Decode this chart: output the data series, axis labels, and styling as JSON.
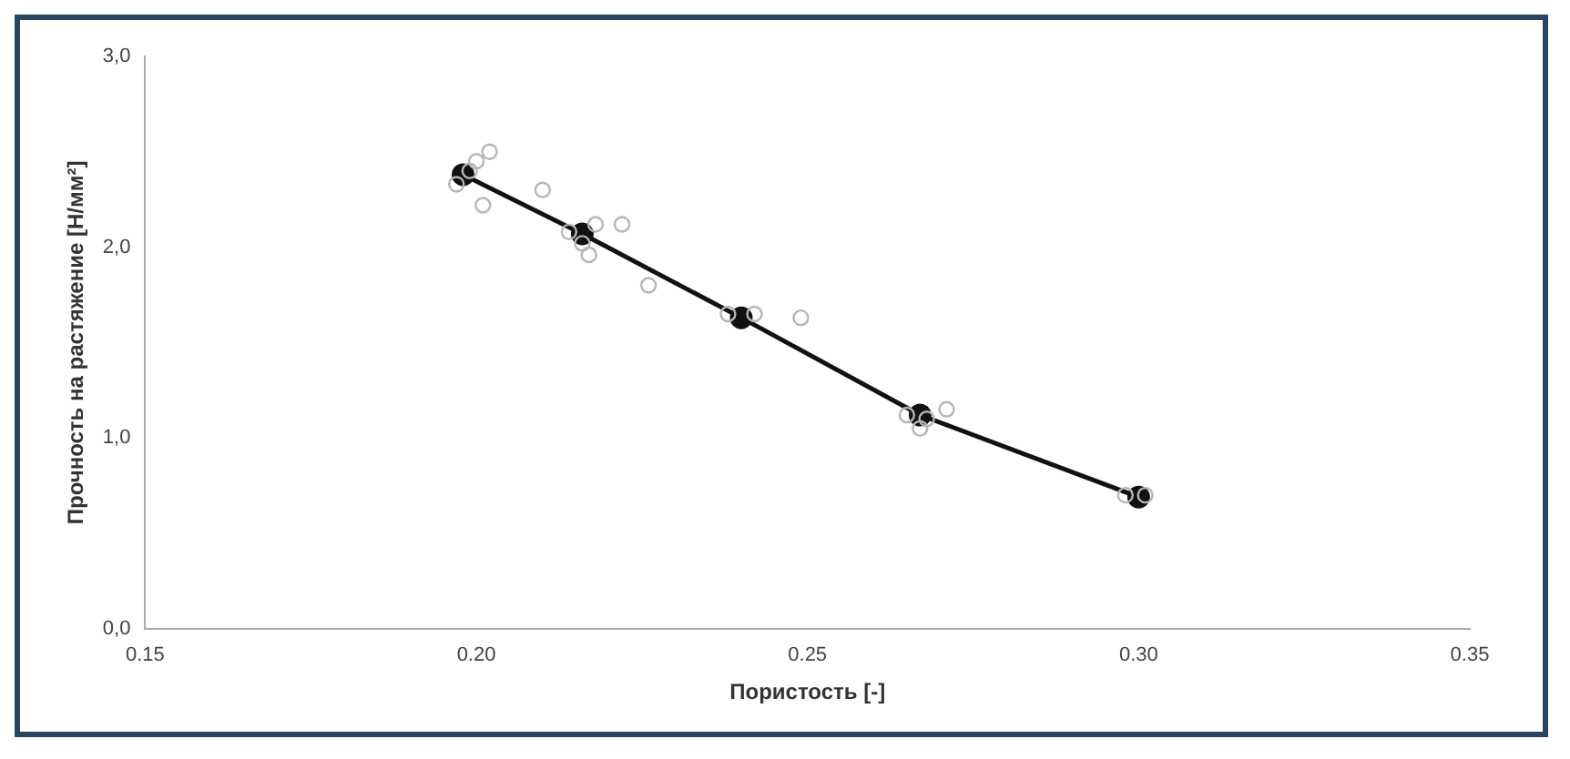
{
  "chart_data": {
    "type": "scatter",
    "xlabel": "Пористость [-]",
    "ylabel": "Прочность на растяжение [Н/мм²]",
    "xlim": [
      0.15,
      0.35
    ],
    "xticks": [
      {
        "value": 0.15,
        "label": "0.15"
      },
      {
        "value": 0.2,
        "label": "0.20"
      },
      {
        "value": 0.25,
        "label": "0.25"
      },
      {
        "value": 0.3,
        "label": "0.30"
      },
      {
        "value": 0.35,
        "label": "0.35"
      }
    ],
    "ylim": [
      0,
      3
    ],
    "yticks": [
      {
        "value": 0,
        "label": "0,0"
      },
      {
        "value": 1,
        "label": "1,0"
      },
      {
        "value": 2,
        "label": "2,0"
      },
      {
        "value": 3,
        "label": "3,0"
      }
    ],
    "grid": false,
    "legend": false,
    "series": [
      {
        "marker": "circle",
        "color": "#b5b5b5",
        "x": [
          0.197,
          0.2,
          0.202,
          0.201,
          0.199,
          0.21,
          0.214,
          0.216,
          0.218,
          0.222,
          0.217,
          0.226,
          0.238,
          0.242,
          0.249,
          0.265,
          0.268,
          0.271,
          0.267,
          0.298,
          0.301
        ],
        "values": [
          2.33,
          2.45,
          2.5,
          2.22,
          2.4,
          2.3,
          2.08,
          2.02,
          2.12,
          2.12,
          1.96,
          1.8,
          1.65,
          1.65,
          1.63,
          1.12,
          1.1,
          1.15,
          1.05,
          0.7,
          0.7
        ]
      },
      {
        "type": "line",
        "marker": "circle",
        "line_style": "solid",
        "color": "#111111",
        "x": [
          0.198,
          0.216,
          0.24,
          0.267,
          0.3
        ],
        "values": [
          2.38,
          2.07,
          1.63,
          1.12,
          0.69
        ]
      }
    ]
  }
}
